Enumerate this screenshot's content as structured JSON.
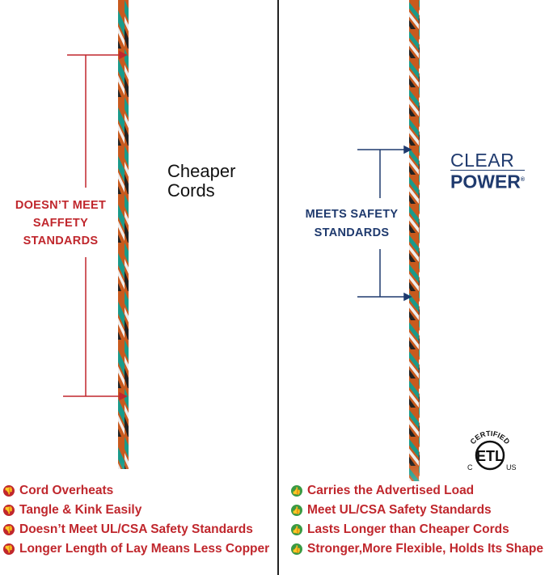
{
  "left": {
    "heading": [
      "Cheaper",
      "Cords"
    ],
    "label": [
      "DOESN’T MEET",
      "SAFFETY",
      "STANDARDS"
    ],
    "items": [
      "Cord Overheats",
      "Tangle & Kink Easily",
      "Doesn’t Meet UL/CSA Safety Standards",
      "Longer Length of Lay Means Less Copper"
    ],
    "icon": "thumbs-down-icon"
  },
  "right": {
    "logo": {
      "line1": "CLEAR",
      "line2": "POWER",
      "reg": "®"
    },
    "label": [
      "MEETS SAFETY",
      "STANDARDS"
    ],
    "items": [
      "Carries the Advertised Load",
      "Meet UL/CSA Safety Standards",
      "Lasts Longer than Cheaper Cords",
      "Stronger,More Flexible, Holds Its Shape"
    ],
    "icon": "thumbs-up-icon",
    "cert": {
      "top": "CERTIFIED",
      "mark": "ETL",
      "left": "C",
      "right": "US"
    }
  },
  "colors": {
    "red": "#c0272d",
    "blue": "#1f3a6e",
    "green": "#3a9a44",
    "teal": "#1a9a8a",
    "orange": "#c85a1e"
  }
}
